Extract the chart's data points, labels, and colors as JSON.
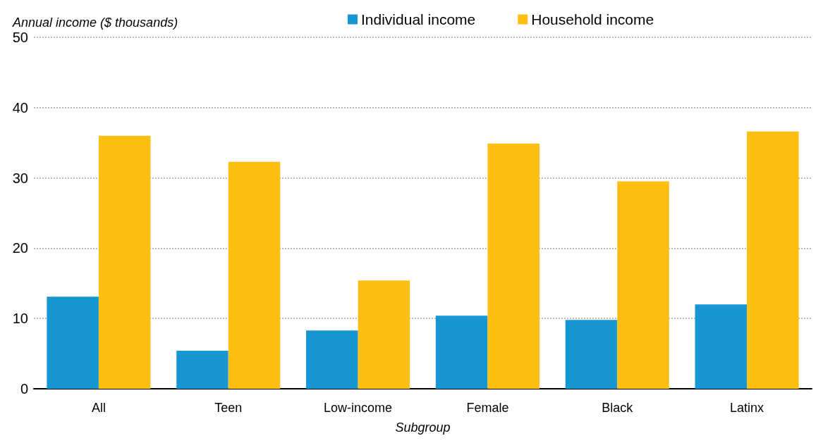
{
  "chart_data": {
    "type": "bar",
    "ylabel": "Annual income ($ thousands)",
    "xlabel": "Subgroup",
    "categories": [
      "All",
      "Teen",
      "Low-income",
      "Female",
      "Black",
      "Latinx"
    ],
    "series": [
      {
        "name": "Individual income",
        "color": "#1696d2",
        "values": [
          13.1,
          5.4,
          8.3,
          10.4,
          9.8,
          12.0
        ]
      },
      {
        "name": "Household income",
        "color": "#fdbf11",
        "values": [
          36.0,
          32.3,
          15.4,
          34.9,
          29.5,
          36.6
        ]
      }
    ],
    "ylim": [
      0,
      50
    ],
    "yticks": [
      0,
      10,
      20,
      30,
      40,
      50
    ],
    "grid": "y",
    "legend": "top"
  }
}
